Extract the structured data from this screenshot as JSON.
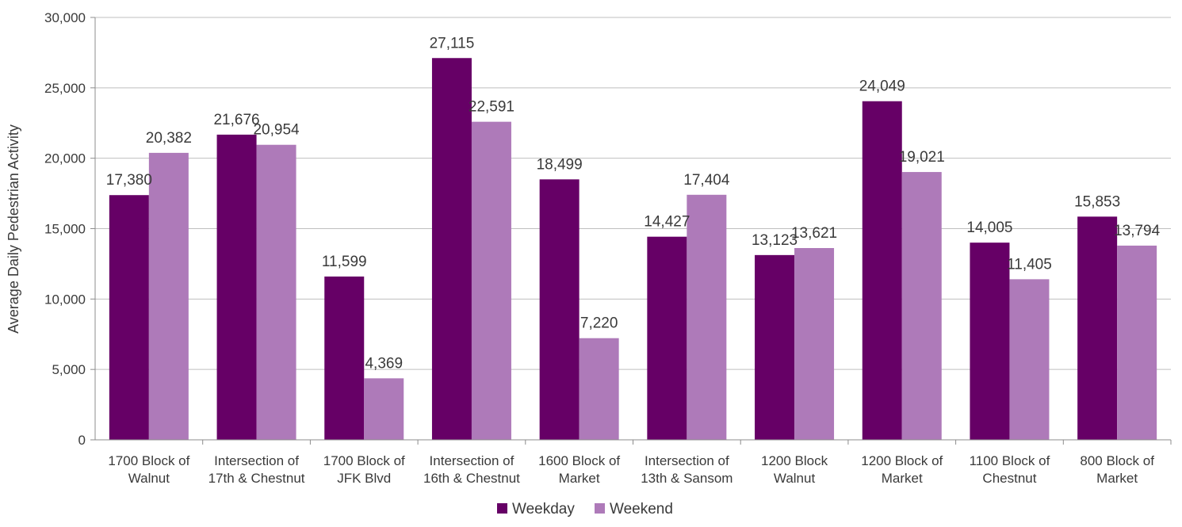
{
  "chart_data": {
    "type": "bar",
    "title": "",
    "xlabel": "",
    "ylabel": "Average Daily Pedestrian Activity",
    "ylim": [
      0,
      30000
    ],
    "yticks": [
      0,
      5000,
      10000,
      15000,
      20000,
      25000,
      30000
    ],
    "ytick_labels": [
      "0",
      "5,000",
      "10,000",
      "15,000",
      "20,000",
      "25,000",
      "30,000"
    ],
    "grid": true,
    "legend_position": "bottom-center",
    "categories": [
      [
        "1700 Block of",
        "Walnut"
      ],
      [
        "Intersection of",
        "17th & Chestnut"
      ],
      [
        "1700 Block of",
        "JFK Blvd"
      ],
      [
        "Intersection of",
        "16th & Chestnut"
      ],
      [
        "1600 Block of",
        "Market"
      ],
      [
        "Intersection of",
        "13th & Sansom"
      ],
      [
        "1200 Block",
        "Walnut"
      ],
      [
        "1200 Block of",
        "Market"
      ],
      [
        "1100 Block of",
        "Chestnut"
      ],
      [
        "800 Block of",
        "Market"
      ]
    ],
    "series": [
      {
        "name": "Weekday",
        "color": "#660066",
        "values": [
          17380,
          21676,
          11599,
          27115,
          18499,
          14427,
          13123,
          24049,
          14005,
          15853
        ],
        "labels": [
          "17,380",
          "21,676",
          "11,599",
          "27,115",
          "18,499",
          "14,427",
          "13,123",
          "24,049",
          "14,005",
          "15,853"
        ]
      },
      {
        "name": "Weekend",
        "color": "#ae7ab9",
        "values": [
          20382,
          20954,
          4369,
          22591,
          7220,
          17404,
          13621,
          19021,
          11405,
          13794
        ],
        "labels": [
          "20,382",
          "20,954",
          "4,369",
          "22,591",
          "7,220",
          "17,404",
          "13,621",
          "19,021",
          "11,405",
          "13,794"
        ]
      }
    ],
    "colors": {
      "gridline": "#bfbfbf",
      "axis": "#8c8c8c",
      "text": "#3a3a3a"
    }
  }
}
